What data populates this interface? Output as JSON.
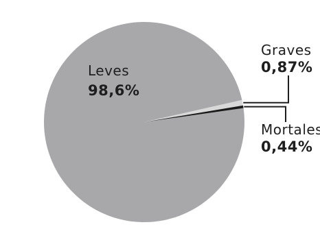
{
  "chart_data": {
    "type": "pie",
    "title": "",
    "slices": [
      {
        "label": "Leves",
        "value": 98.6,
        "value_label": "98,6%",
        "color": "#a8a8aa"
      },
      {
        "label": "Graves",
        "value": 0.87,
        "value_label": "0,87%",
        "color": "#d8d8d8"
      },
      {
        "label": "Mortales",
        "value": 0.44,
        "value_label": "0,44%",
        "color": "#1a1a1a"
      }
    ],
    "legend": "none"
  }
}
